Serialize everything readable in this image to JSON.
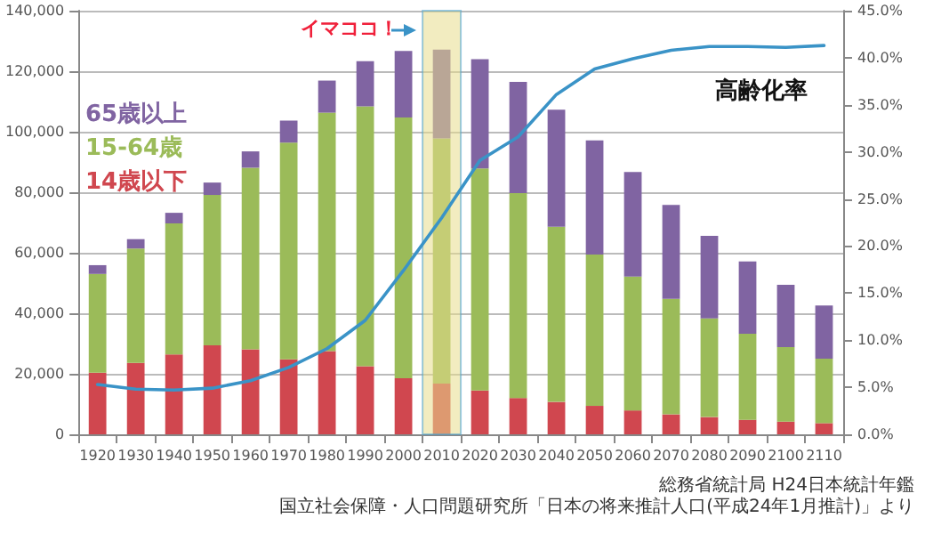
{
  "chart_data": {
    "type": "bar",
    "stacked": true,
    "categories": [
      "1920",
      "1930",
      "1940",
      "1950",
      "1960",
      "1970",
      "1980",
      "1990",
      "2000",
      "2010",
      "2020",
      "2030",
      "2040",
      "2050",
      "2060",
      "2070",
      "2080",
      "2090",
      "2100",
      "2110"
    ],
    "series": [
      {
        "name": "14歳以下",
        "color": "#d0474f",
        "values": [
          20400,
          23600,
          26400,
          29400,
          28100,
          24800,
          27500,
          22500,
          18500,
          16800,
          14500,
          12000,
          10700,
          9400,
          7900,
          6600,
          5700,
          4800,
          4200,
          3700
        ]
      },
      {
        "name": "15-64歳",
        "color": "#9bbb59",
        "values": [
          32600,
          37800,
          43300,
          49700,
          60000,
          71600,
          78800,
          85900,
          86200,
          81000,
          73400,
          67700,
          57900,
          50000,
          44200,
          38200,
          32600,
          28400,
          24600,
          21300
        ]
      },
      {
        "name": "65歳以上",
        "color": "#8064a2",
        "values": [
          2900,
          3100,
          3500,
          4100,
          5400,
          7300,
          10600,
          14900,
          22000,
          29300,
          36100,
          36800,
          38700,
          37700,
          34600,
          31000,
          27300,
          23900,
          20600,
          17600
        ]
      },
      {
        "name": "高齢化率",
        "type": "line",
        "axis": "y2",
        "color": "#3a93c7",
        "values": [
          5.3,
          4.8,
          4.7,
          4.9,
          5.7,
          7.1,
          9.1,
          12.1,
          17.4,
          23.0,
          29.1,
          31.6,
          36.1,
          38.8,
          39.9,
          40.8,
          41.2,
          41.2,
          41.1,
          41.3
        ]
      }
    ],
    "ylim": [
      0,
      140000
    ],
    "yticks": [
      {
        "value": 0,
        "label": "0"
      },
      {
        "value": 20000,
        "label": "20,000"
      },
      {
        "value": 40000,
        "label": "40,000"
      },
      {
        "value": 60000,
        "label": "60,000"
      },
      {
        "value": 80000,
        "label": "80,000"
      },
      {
        "value": 100000,
        "label": "100,000"
      },
      {
        "value": 120000,
        "label": "120,000"
      },
      {
        "value": 140000,
        "label": "140,000"
      }
    ],
    "y2lim": [
      0,
      45
    ],
    "y2ticks": [
      {
        "value": 0,
        "label": "0.0%"
      },
      {
        "value": 5,
        "label": "5.0%"
      },
      {
        "value": 10,
        "label": "10.0%"
      },
      {
        "value": 15,
        "label": "15.0%"
      },
      {
        "value": 20,
        "label": "20.0%"
      },
      {
        "value": 25,
        "label": "25.0%"
      },
      {
        "value": 30,
        "label": "30.0%"
      },
      {
        "value": 35,
        "label": "35.0%"
      },
      {
        "value": 40,
        "label": "40.0%"
      },
      {
        "value": 45,
        "label": "45.0%"
      }
    ],
    "grid": "y",
    "legend": false,
    "marker": "none",
    "line_style": "solid",
    "bands": [
      {
        "axis": "x",
        "from": "2010",
        "to": "2010",
        "label": "イマココ！",
        "color": "#e8dc8c"
      }
    ],
    "annotations": [
      "総務省統計局 H24日本統計年鑑",
      "国立社会保障・人口問題研究所「日本の将来推計人口(平成24年1月推計)」より"
    ]
  }
}
